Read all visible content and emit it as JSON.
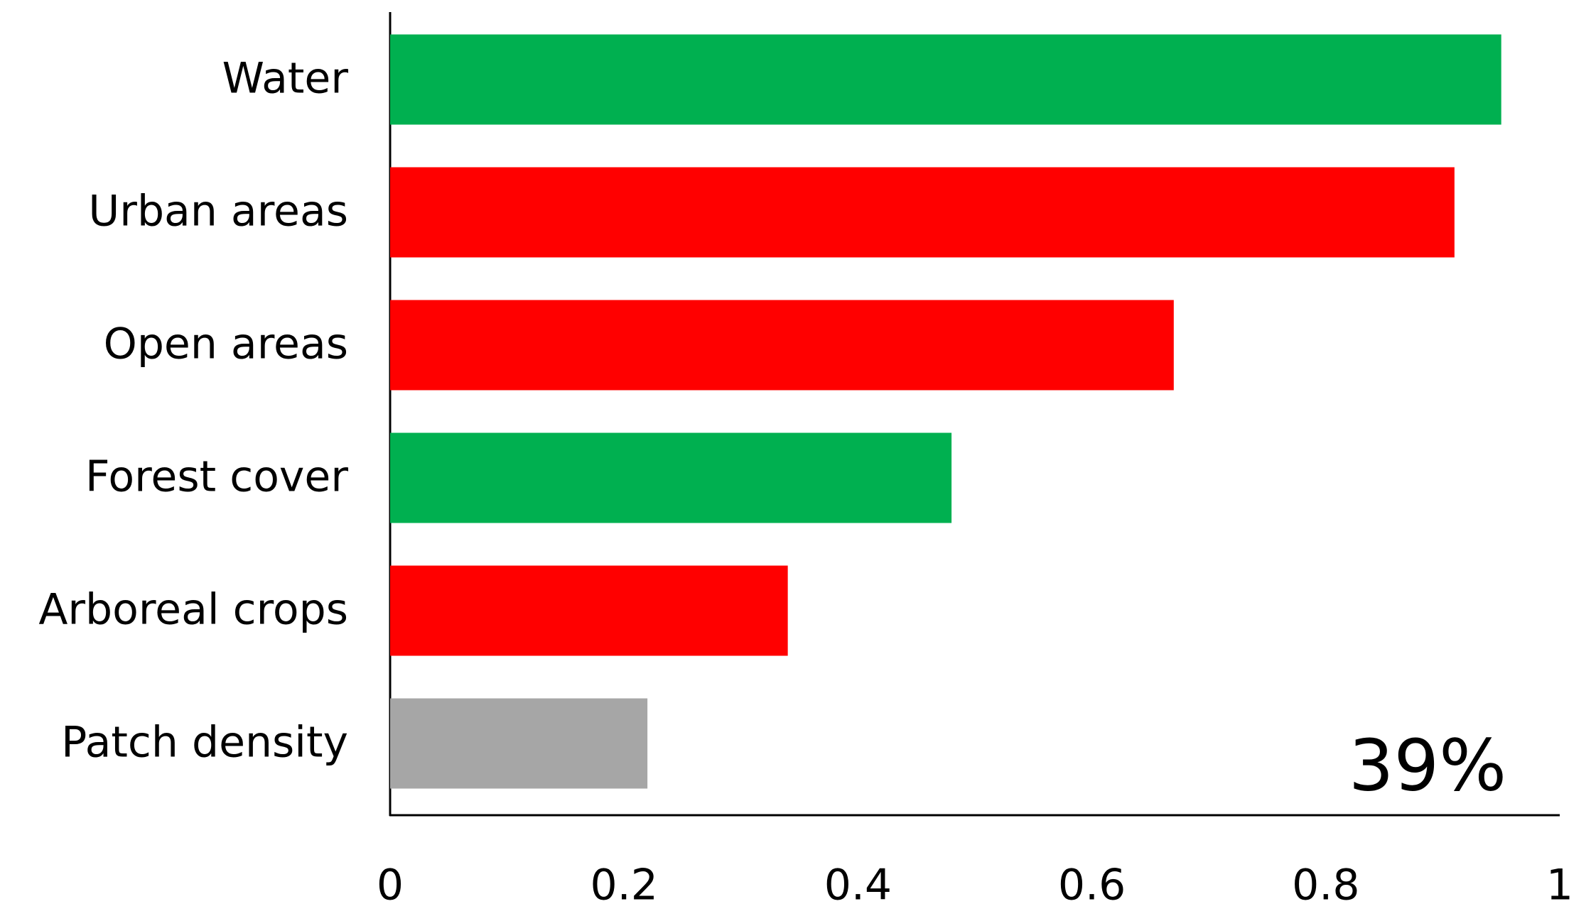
{
  "chart_data": {
    "type": "bar",
    "orientation": "horizontal",
    "categories": [
      "Water",
      "Urban areas",
      "Open areas",
      "Forest cover",
      "Arboreal crops",
      "Patch density"
    ],
    "values": [
      0.95,
      0.91,
      0.67,
      0.48,
      0.34,
      0.22
    ],
    "colors": [
      "#00b050",
      "#ff0000",
      "#ff0000",
      "#00b050",
      "#ff0000",
      "#a6a6a6"
    ],
    "xlim": [
      0,
      1
    ],
    "xticks": [
      0,
      0.2,
      0.4,
      0.6,
      0.8,
      1
    ],
    "annotation": "39%",
    "grid": false
  }
}
